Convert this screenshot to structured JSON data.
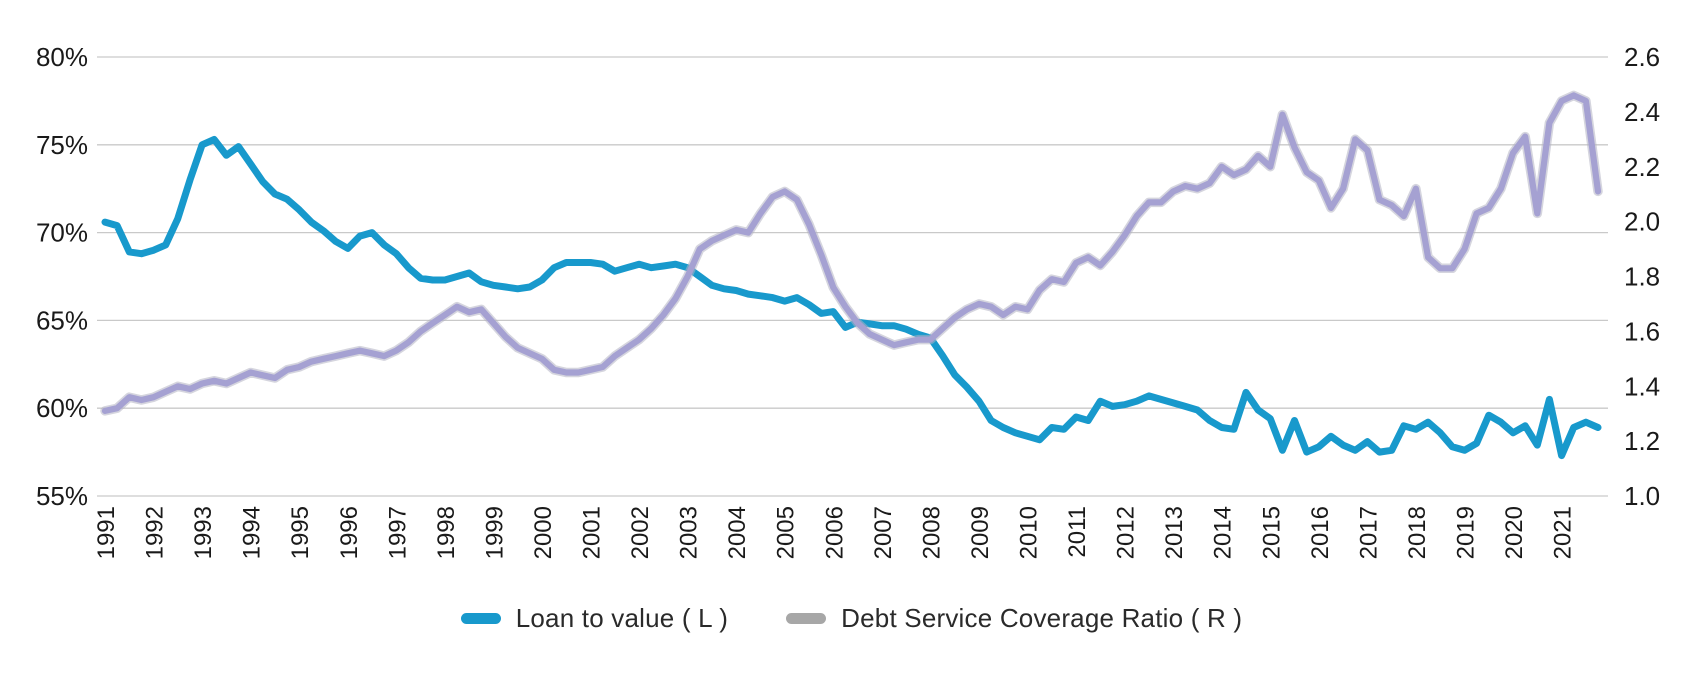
{
  "chart_data": {
    "type": "line",
    "frequency": "quarterly",
    "x_start_year": 1991,
    "x_tick_labels": [
      "1991",
      "1992",
      "1993",
      "1994",
      "1995",
      "1996",
      "1997",
      "1998",
      "1999",
      "2000",
      "2001",
      "2002",
      "2003",
      "2004",
      "2005",
      "2006",
      "2007",
      "2008",
      "2009",
      "2010",
      "2011",
      "2012",
      "2013",
      "2014",
      "2015",
      "2016",
      "2017",
      "2018",
      "2019",
      "2020",
      "2021"
    ],
    "left_axis": {
      "min": 55,
      "max": 80,
      "tick_values": [
        80,
        75,
        70,
        65,
        60,
        55
      ],
      "tick_labels": [
        "80%",
        "75%",
        "70%",
        "65%",
        "60%",
        "55%"
      ]
    },
    "right_axis": {
      "min": 1.0,
      "max": 2.6,
      "tick_labels": [
        "2.6",
        "2.4",
        "2.2",
        "2.0",
        "1.8",
        "1.6",
        "1.4",
        "1.2",
        "1.0"
      ]
    },
    "grid": "horizontal",
    "gridline_color": "#c9c9c9",
    "legend_position": "bottom-center",
    "series": [
      {
        "name": "Loan to value ( L )",
        "axis": "left",
        "color": "#1899cc",
        "legend_swatch_color": "#1899cc",
        "values": [
          70.6,
          70.4,
          68.9,
          68.8,
          69.0,
          69.3,
          70.8,
          73.0,
          75.0,
          75.3,
          74.4,
          74.9,
          73.9,
          72.9,
          72.2,
          71.9,
          71.3,
          70.6,
          70.1,
          69.5,
          69.1,
          69.8,
          70.0,
          69.3,
          68.8,
          68.0,
          67.4,
          67.3,
          67.3,
          67.5,
          67.7,
          67.2,
          67.0,
          66.9,
          66.8,
          66.9,
          67.3,
          68.0,
          68.3,
          68.3,
          68.3,
          68.2,
          67.8,
          68.0,
          68.2,
          68.0,
          68.1,
          68.2,
          68.0,
          67.5,
          67.0,
          66.8,
          66.7,
          66.5,
          66.4,
          66.3,
          66.1,
          66.3,
          65.9,
          65.4,
          65.5,
          64.6,
          64.9,
          64.8,
          64.7,
          64.7,
          64.5,
          64.2,
          64.0,
          63.0,
          61.9,
          61.2,
          60.4,
          59.3,
          58.9,
          58.6,
          58.4,
          58.2,
          58.9,
          58.8,
          59.5,
          59.3,
          60.4,
          60.1,
          60.2,
          60.4,
          60.7,
          60.5,
          60.3,
          60.1,
          59.9,
          59.3,
          58.9,
          58.8,
          60.9,
          59.9,
          59.4,
          57.6,
          59.3,
          57.5,
          57.8,
          58.4,
          57.9,
          57.6,
          58.1,
          57.5,
          57.6,
          59.0,
          58.8,
          59.2,
          58.6,
          57.8,
          57.6,
          58.0,
          59.6,
          59.2,
          58.6,
          59.0,
          57.9,
          60.5,
          57.3,
          58.9,
          59.2,
          58.9
        ]
      },
      {
        "name": "Debt Service Coverage Ratio ( R )",
        "axis": "right",
        "color": "#a5a1d2",
        "halo_color": "#b3b2c2",
        "legend_swatch_color": "#a7a7a7",
        "values": [
          1.31,
          1.32,
          1.36,
          1.35,
          1.36,
          1.38,
          1.4,
          1.39,
          1.41,
          1.42,
          1.41,
          1.43,
          1.45,
          1.44,
          1.43,
          1.46,
          1.47,
          1.49,
          1.5,
          1.51,
          1.52,
          1.53,
          1.52,
          1.51,
          1.53,
          1.56,
          1.6,
          1.63,
          1.66,
          1.69,
          1.67,
          1.68,
          1.63,
          1.58,
          1.54,
          1.52,
          1.5,
          1.46,
          1.45,
          1.45,
          1.46,
          1.47,
          1.51,
          1.54,
          1.57,
          1.61,
          1.66,
          1.72,
          1.8,
          1.9,
          1.93,
          1.95,
          1.97,
          1.96,
          2.03,
          2.09,
          2.11,
          2.08,
          1.99,
          1.88,
          1.76,
          1.69,
          1.63,
          1.59,
          1.57,
          1.55,
          1.56,
          1.57,
          1.57,
          1.61,
          1.65,
          1.68,
          1.7,
          1.69,
          1.66,
          1.69,
          1.68,
          1.75,
          1.79,
          1.78,
          1.85,
          1.87,
          1.84,
          1.89,
          1.95,
          2.02,
          2.07,
          2.07,
          2.11,
          2.13,
          2.12,
          2.14,
          2.2,
          2.17,
          2.19,
          2.24,
          2.2,
          2.39,
          2.27,
          2.18,
          2.15,
          2.05,
          2.12,
          2.3,
          2.26,
          2.08,
          2.06,
          2.02,
          2.12,
          1.87,
          1.83,
          1.83,
          1.9,
          2.03,
          2.05,
          2.12,
          2.25,
          2.31,
          2.03,
          2.36,
          2.44,
          2.46,
          2.44,
          2.11
        ]
      }
    ]
  },
  "legend": {
    "ltv_label": "Loan to value ( L )",
    "dscr_label": "Debt Service Coverage Ratio ( R )"
  }
}
